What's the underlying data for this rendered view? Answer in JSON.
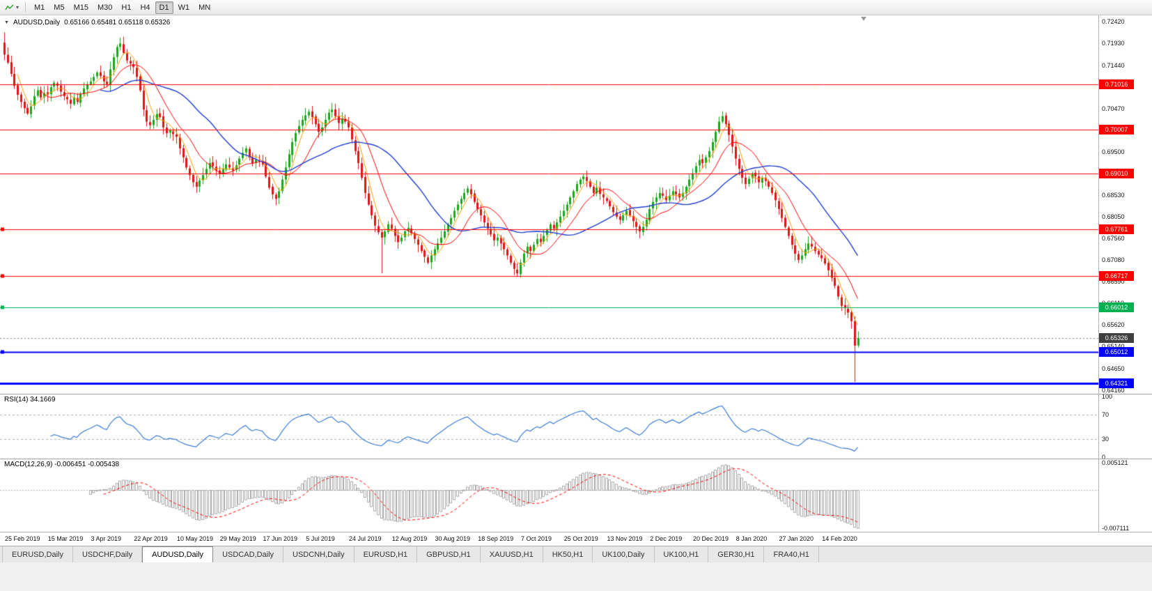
{
  "toolbar": {
    "timeframes": [
      "M1",
      "M5",
      "M15",
      "M30",
      "H1",
      "H4",
      "D1",
      "W1",
      "MN"
    ],
    "active_timeframe": "D1"
  },
  "chart": {
    "collapse_icon": "▼",
    "title": "AUDUSD,Daily",
    "ohlc": "0.65166 0.65481 0.65118 0.65326",
    "price_axis_labels": [
      "0.72420",
      "0.71930",
      "0.71440",
      "0.70960",
      "0.70470",
      "0.69980",
      "0.69500",
      "0.69010",
      "0.68530",
      "0.68050",
      "0.67560",
      "0.67080",
      "0.66590",
      "0.66110",
      "0.65620",
      "0.65140",
      "0.64650",
      "0.64160"
    ],
    "date_axis_labels": [
      "25 Feb 2019",
      "15 Mar 2019",
      "3 Apr 2019",
      "22 Apr 2019",
      "10 May 2019",
      "29 May 2019",
      "17 Jun 2019",
      "5 Jul 2019",
      "24 Jul 2019",
      "12 Aug 2019",
      "30 Aug 2019",
      "18 Sep 2019",
      "7 Oct 2019",
      "25 Oct 2019",
      "13 Nov 2019",
      "2 Dec 2019",
      "20 Dec 2019",
      "8 Jan 2020",
      "27 Jan 2020",
      "14 Feb 2020"
    ],
    "hlines": [
      {
        "value": 0.71016,
        "label": "0.71016",
        "color": "#ff0000",
        "width": 1,
        "edge_marker": false
      },
      {
        "value": 0.70007,
        "label": "0.70007",
        "color": "#ff0000",
        "width": 1,
        "edge_marker": false
      },
      {
        "value": 0.6901,
        "label": "0.69010",
        "color": "#ff0000",
        "width": 1,
        "edge_marker": false
      },
      {
        "value": 0.67761,
        "label": "0.67761",
        "color": "#ff0000",
        "width": 1,
        "edge_marker": true
      },
      {
        "value": 0.66717,
        "label": "0.66717",
        "color": "#ff0000",
        "width": 1,
        "edge_marker": true
      },
      {
        "value": 0.66012,
        "label": "0.66012",
        "color": "#00b050",
        "width": 1,
        "edge_marker": true
      },
      {
        "value": 0.65012,
        "label": "0.65012",
        "color": "#0000ff",
        "width": 2,
        "edge_marker": true
      },
      {
        "value": 0.64321,
        "label": "0.64321",
        "color": "#0000ff",
        "width": 3,
        "edge_marker": false
      }
    ],
    "current_price": {
      "value": 0.65326,
      "label": "0.65326",
      "badge_color": "#3f3f3f",
      "line_color": "#808080"
    }
  },
  "rsi_panel": {
    "label": "RSI(14) 34.1669",
    "levels": [
      70,
      30
    ],
    "axis_labels": [
      {
        "value": 100,
        "text": "100"
      },
      {
        "value": 70,
        "text": "70"
      },
      {
        "value": 30,
        "text": "30"
      },
      {
        "value": 0,
        "text": "0"
      }
    ]
  },
  "macd_panel": {
    "label": "MACD(12,26,9) -0.006451 -0.005438",
    "axis_labels": [
      {
        "value": 0.005121,
        "text": "0.005121"
      },
      {
        "value": -0.007111,
        "text": "-0.007111"
      }
    ]
  },
  "tabs": [
    "EURUSD,Daily",
    "USDCHF,Daily",
    "AUDUSD,Daily",
    "USDCAD,Daily",
    "USDCNH,Daily",
    "EURUSD,H1",
    "GBPUSD,H1",
    "XAUUSD,H1",
    "HK50,H1",
    "UK100,Daily",
    "UK100,H1",
    "GER30,H1",
    "FRA40,H1"
  ],
  "active_tab": "AUDUSD,Daily",
  "chart_data": {
    "type": "candlestick",
    "symbol": "AUDUSD",
    "timeframe": "Daily",
    "y_axis_range": [
      0.6416,
      0.7242
    ],
    "current_bar_ohlc": {
      "open": 0.65166,
      "high": 0.65481,
      "low": 0.65118,
      "close": 0.65326
    },
    "colors": {
      "up": "#18a818",
      "down": "#e01414",
      "ma_fast": "#ff9d00",
      "ma_mid": "#ff0000",
      "ma_slow": "#1f3fcf",
      "rsi": "#3c7cd4",
      "macd_hist": "#aaaaaa",
      "macd_signal": "#ff0000",
      "level_dash": "#b0b0b0"
    },
    "moving_averages": [
      {
        "period": 5,
        "color": "#ff9d00"
      },
      {
        "period": 12,
        "color": "#ff0000"
      },
      {
        "period": 30,
        "color": "#1f3fcf"
      }
    ],
    "indicators": {
      "rsi": {
        "period": 14,
        "last": 34.1669,
        "levels": [
          30,
          70
        ],
        "range": [
          0,
          100
        ]
      },
      "macd": {
        "fast": 12,
        "slow": 26,
        "signal": 9,
        "last_macd": -0.006451,
        "last_signal": -0.005438,
        "range": [
          -0.007111,
          0.005121
        ]
      }
    },
    "closes": [
      0.7168,
      0.715,
      0.7125,
      0.7098,
      0.7078,
      0.7062,
      0.7048,
      0.7036,
      0.7052,
      0.7075,
      0.7088,
      0.7072,
      0.7082,
      0.7078,
      0.7095,
      0.7105,
      0.7098,
      0.7085,
      0.7075,
      0.7068,
      0.7058,
      0.7072,
      0.7062,
      0.708,
      0.7092,
      0.71,
      0.7108,
      0.7118,
      0.7128,
      0.712,
      0.7108,
      0.7102,
      0.7135,
      0.7162,
      0.7185,
      0.7193,
      0.7172,
      0.7155,
      0.7148,
      0.714,
      0.7118,
      0.7088,
      0.7045,
      0.7018,
      0.701,
      0.7022,
      0.7035,
      0.7028,
      0.7005,
      0.6992,
      0.6998,
      0.699,
      0.6984,
      0.6958,
      0.6938,
      0.6915,
      0.6898,
      0.6882,
      0.6872,
      0.6886,
      0.6898,
      0.6912,
      0.6925,
      0.6918,
      0.6908,
      0.69,
      0.6912,
      0.6922,
      0.6915,
      0.6908,
      0.692,
      0.6935,
      0.6948,
      0.6958,
      0.6938,
      0.6925,
      0.6932,
      0.6928,
      0.6922,
      0.6895,
      0.687,
      0.6855,
      0.6845,
      0.6862,
      0.6888,
      0.6915,
      0.6945,
      0.6972,
      0.6992,
      0.7008,
      0.7022,
      0.7032,
      0.704,
      0.7028,
      0.7012,
      0.6995,
      0.7005,
      0.7022,
      0.7038,
      0.7045,
      0.703,
      0.7015,
      0.7025,
      0.7018,
      0.7005,
      0.6978,
      0.6952,
      0.6925,
      0.6892,
      0.6858,
      0.6832,
      0.6808,
      0.6785,
      0.677,
      0.6758,
      0.6772,
      0.6788,
      0.6778,
      0.6762,
      0.6748,
      0.6758,
      0.6772,
      0.678,
      0.6768,
      0.6755,
      0.6742,
      0.6728,
      0.6715,
      0.6702,
      0.6718,
      0.6732,
      0.6745,
      0.6758,
      0.6772,
      0.6788,
      0.6802,
      0.6818,
      0.6832,
      0.6845,
      0.6858,
      0.6868,
      0.6855,
      0.6838,
      0.6822,
      0.6808,
      0.6792,
      0.6778,
      0.6765,
      0.6752,
      0.6758,
      0.6745,
      0.6732,
      0.6718,
      0.6702,
      0.6688,
      0.6678,
      0.6702,
      0.6722,
      0.6738,
      0.6728,
      0.6742,
      0.6755,
      0.6748,
      0.6762,
      0.6775,
      0.6788,
      0.6778,
      0.6792,
      0.6805,
      0.6818,
      0.6832,
      0.6848,
      0.6862,
      0.6878,
      0.6888,
      0.6895,
      0.6885,
      0.6872,
      0.6858,
      0.687,
      0.6856,
      0.6848,
      0.684,
      0.6828,
      0.6815,
      0.6805,
      0.6798,
      0.6808,
      0.6818,
      0.6808,
      0.6795,
      0.6782,
      0.6772,
      0.6782,
      0.6798,
      0.6822,
      0.6838,
      0.6848,
      0.6858,
      0.6852,
      0.6842,
      0.6852,
      0.6862,
      0.6855,
      0.6848,
      0.6858,
      0.6872,
      0.6888,
      0.6902,
      0.6918,
      0.6932,
      0.6925,
      0.6938,
      0.6952,
      0.6972,
      0.6995,
      0.7018,
      0.703,
      0.7012,
      0.6988,
      0.6962,
      0.6935,
      0.6912,
      0.6892,
      0.6878,
      0.689,
      0.6902,
      0.6895,
      0.6882,
      0.6892,
      0.6885,
      0.6872,
      0.6858,
      0.6842,
      0.6822,
      0.6802,
      0.6782,
      0.6762,
      0.6742,
      0.6722,
      0.6708,
      0.6718,
      0.6732,
      0.6745,
      0.6738,
      0.6728,
      0.672,
      0.6712,
      0.67,
      0.6685,
      0.6668,
      0.665,
      0.6626,
      0.6605,
      0.66,
      0.659,
      0.6571,
      0.6516,
      0.65326
    ],
    "overrides": {
      "0": {
        "o": 0.7195,
        "h": 0.7218
      },
      "35": {
        "h": 0.7206
      },
      "114": {
        "l": 0.6678
      },
      "155": {
        "l": 0.667
      },
      "217": {
        "h": 0.7041
      },
      "257": {
        "o": 0.6571,
        "h": 0.6582,
        "l": 0.64346
      },
      "258": {
        "o": 0.65166,
        "h": 0.65481,
        "l": 0.65118
      }
    }
  }
}
